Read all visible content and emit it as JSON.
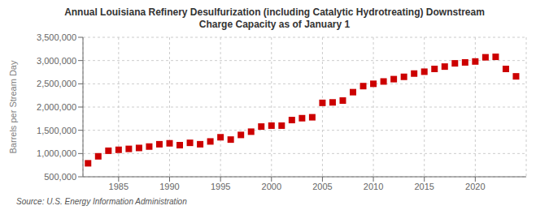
{
  "chart_data": {
    "type": "scatter",
    "title": "Annual Louisiana Refinery Desulfurization (including Catalytic Hydrotreating) Downstream\nCharge Capacity as of January 1",
    "ylabel": "Barrels per Stream Day",
    "annotations": [
      "Source: U.S. Energy Information Administration"
    ],
    "color": "#cc0000",
    "marker": "square",
    "grid": true,
    "x": [
      1982,
      1983,
      1984,
      1985,
      1986,
      1987,
      1988,
      1989,
      1990,
      1991,
      1992,
      1993,
      1994,
      1995,
      1996,
      1997,
      1998,
      1999,
      2000,
      2001,
      2002,
      2003,
      2004,
      2005,
      2006,
      2007,
      2008,
      2009,
      2010,
      2011,
      2012,
      2013,
      2014,
      2015,
      2016,
      2017,
      2018,
      2019,
      2020,
      2021,
      2022,
      2023,
      2024
    ],
    "values": [
      790000,
      940000,
      1060000,
      1080000,
      1100000,
      1120000,
      1150000,
      1200000,
      1220000,
      1180000,
      1230000,
      1200000,
      1260000,
      1350000,
      1300000,
      1400000,
      1470000,
      1580000,
      1600000,
      1600000,
      1720000,
      1760000,
      1780000,
      2090000,
      2100000,
      2140000,
      2320000,
      2450000,
      2500000,
      2550000,
      2600000,
      2650000,
      2720000,
      2760000,
      2820000,
      2870000,
      2940000,
      2960000,
      2980000,
      3070000,
      3080000,
      2820000,
      2660000
    ],
    "xlim": [
      1981.5,
      2025
    ],
    "xticks": [
      1985,
      1990,
      1995,
      2000,
      2005,
      2010,
      2015,
      2020
    ],
    "ylim": [
      500000,
      3500000
    ],
    "yticks": [
      {
        "value": 500000,
        "label": "500,000"
      },
      {
        "value": 1000000,
        "label": "1,000,000"
      },
      {
        "value": 1500000,
        "label": "1,500,000"
      },
      {
        "value": 2000000,
        "label": "2,000,000"
      },
      {
        "value": 2500000,
        "label": "2,500,000"
      },
      {
        "value": 3000000,
        "label": "3,000,000"
      },
      {
        "value": 3500000,
        "label": "3,500,000"
      }
    ]
  }
}
